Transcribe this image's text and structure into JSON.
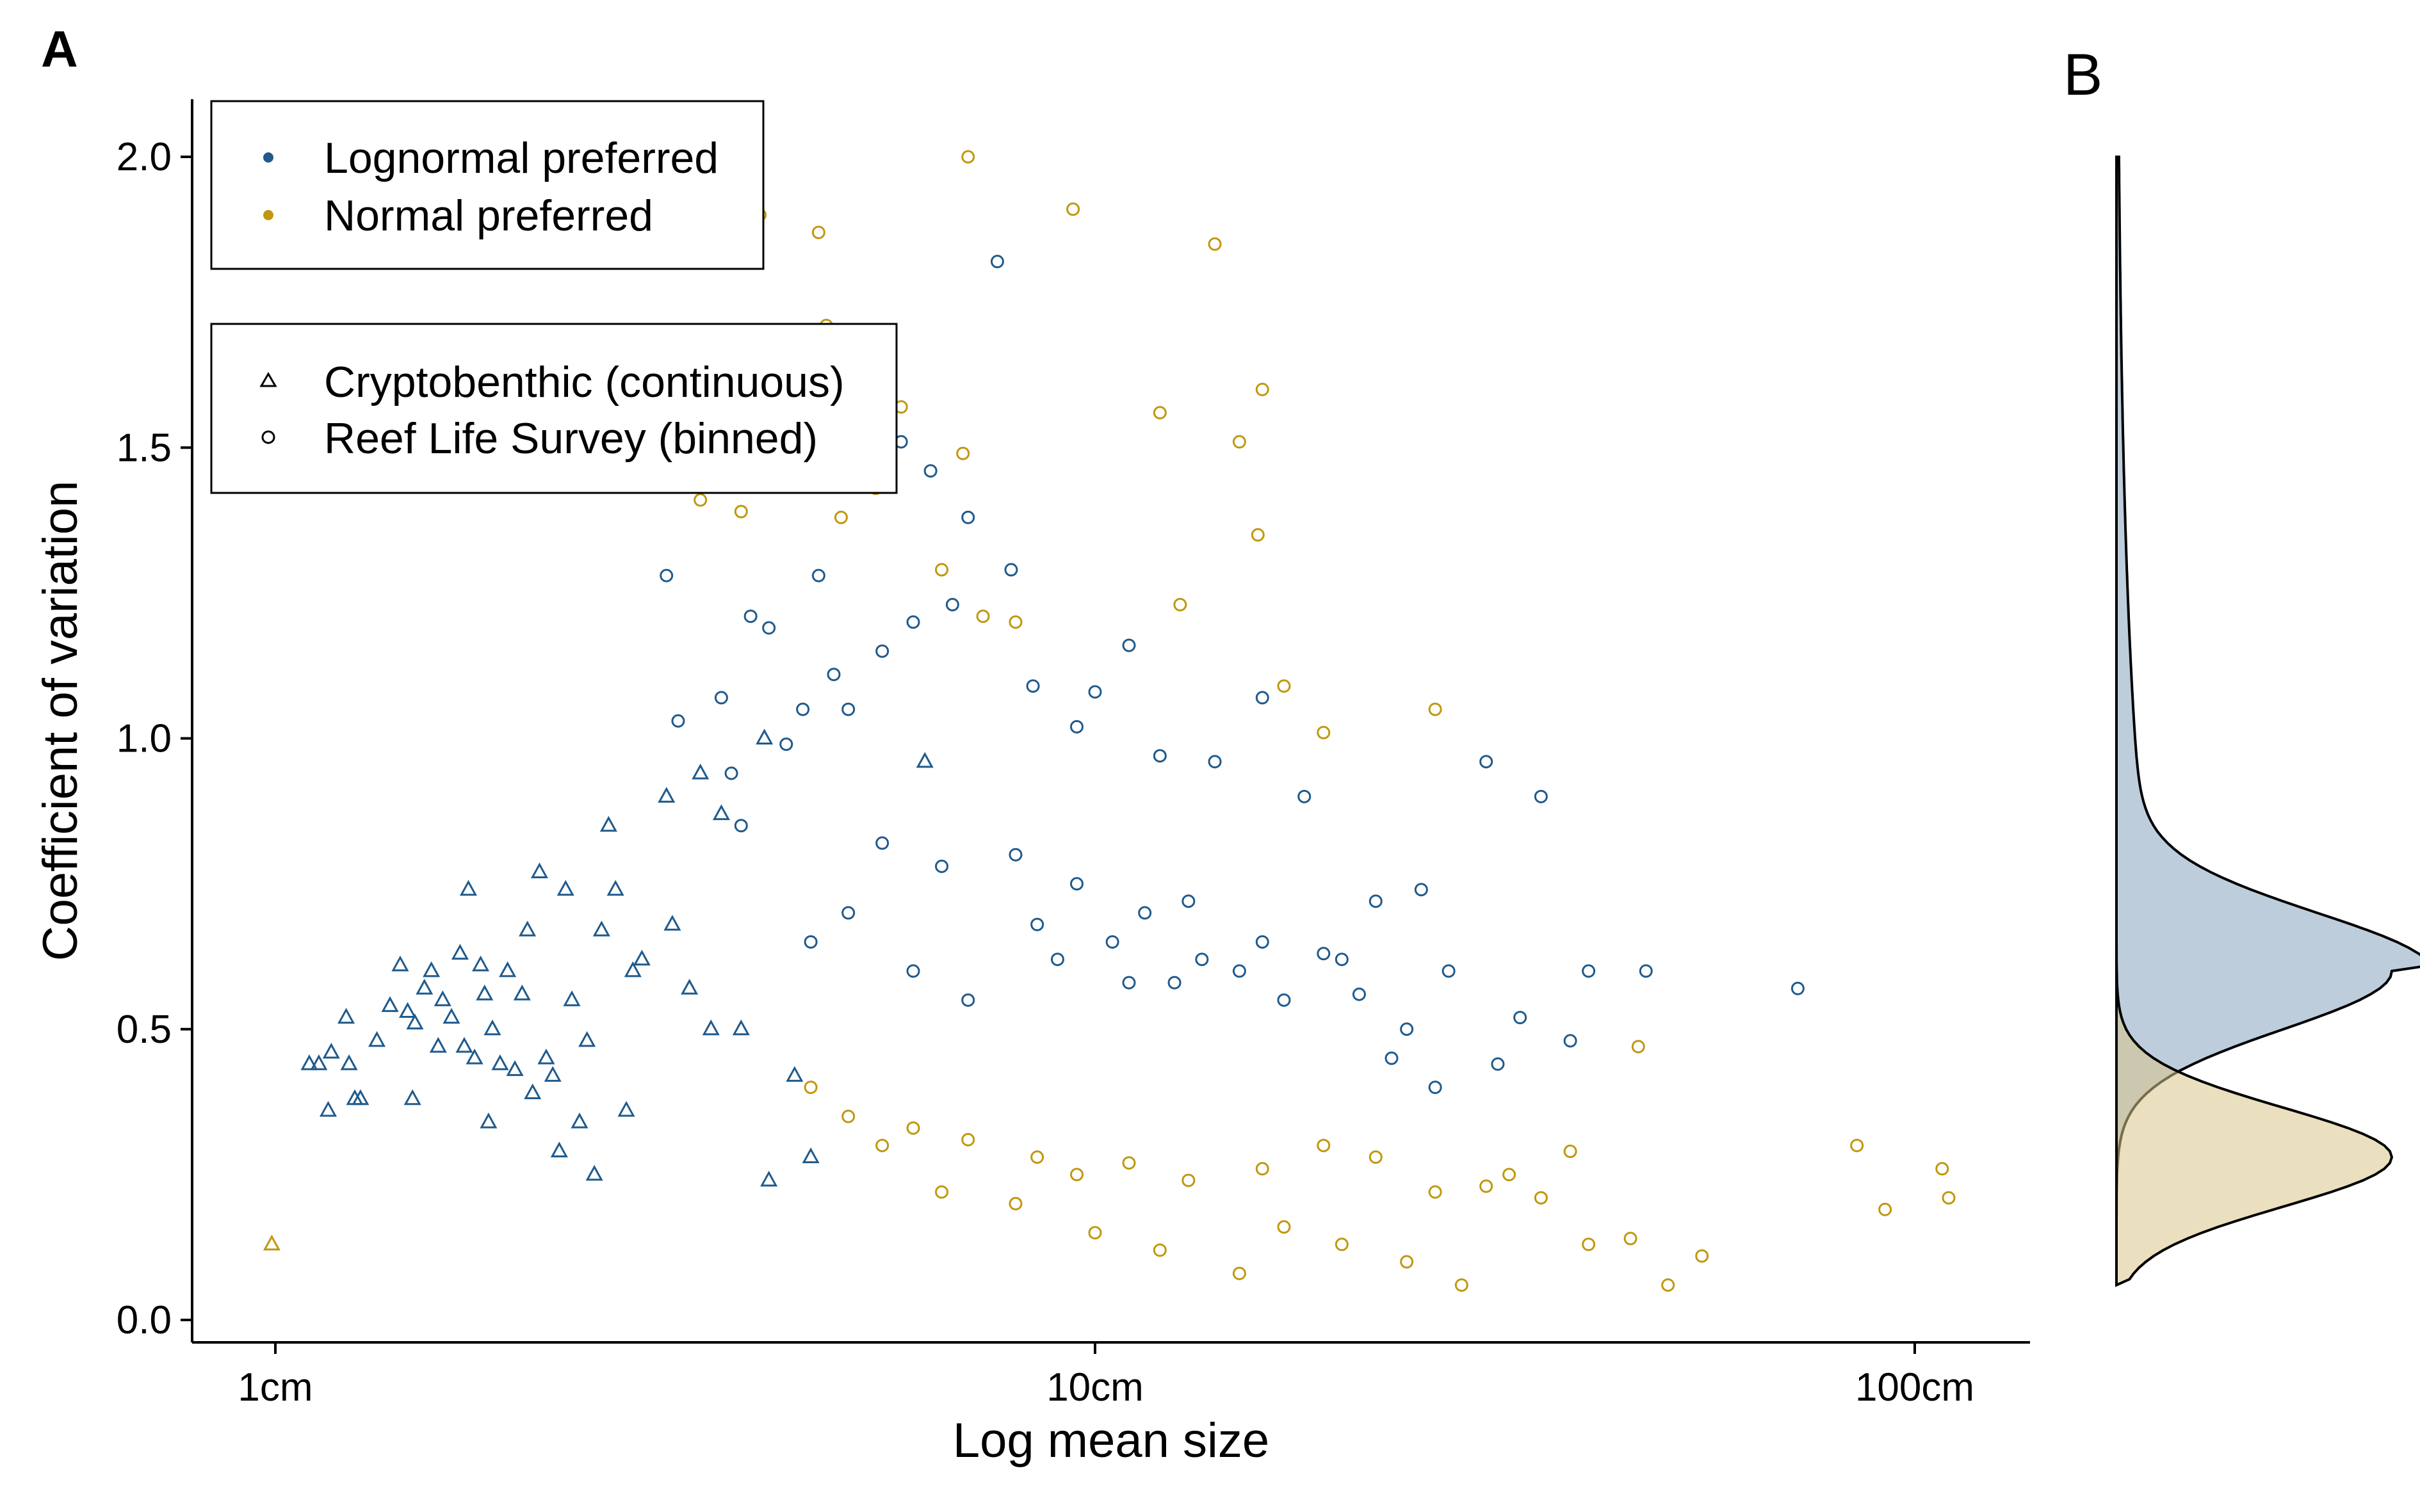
{
  "figure": {
    "panel_a_label": "A",
    "panel_b_label": "B"
  },
  "colors": {
    "lognormal": "#1f5a8c",
    "normal": "#c0980f",
    "lognormal_fill": "#b9cad9",
    "normal_fill": "#e8d9b0"
  },
  "legend_color": {
    "items": [
      {
        "label": "Lognormal preferred",
        "color": "#1f5a8c"
      },
      {
        "label": "Normal preferred",
        "color": "#c0980f"
      }
    ]
  },
  "legend_shape": {
    "items": [
      {
        "label": "Cryptobenthic (continuous)",
        "shape": "triangle"
      },
      {
        "label": "Reef Life Survey (binned)",
        "shape": "circle"
      }
    ]
  },
  "chart_data": [
    {
      "type": "scatter",
      "panel": "A",
      "xlabel": "Log mean size",
      "ylabel": "Coefficient of variation",
      "x_scale": "log10",
      "xlim": [
        0.9,
        130
      ],
      "ylim": [
        -0.03,
        2.09
      ],
      "x_ticks": [
        1,
        10,
        100
      ],
      "x_tick_labels": [
        "1cm",
        "10cm",
        "100cm"
      ],
      "y_ticks": [
        0,
        0.5,
        1,
        1.5,
        2
      ],
      "y_tick_labels": [
        "0.0",
        "0.5",
        "1.0",
        "1.5",
        "2.0"
      ],
      "grid": false,
      "legend_position": "top-left",
      "series": [
        {
          "name": "Lognormal preferred",
          "marker": "triangle",
          "group": "Cryptobenthic (continuous)",
          "points": [
            [
              1.1,
              0.44
            ],
            [
              1.13,
              0.44
            ],
            [
              1.16,
              0.36
            ],
            [
              1.17,
              0.46
            ],
            [
              1.22,
              0.52
            ],
            [
              1.23,
              0.44
            ],
            [
              1.25,
              0.38
            ],
            [
              1.27,
              0.38
            ],
            [
              1.33,
              0.48
            ],
            [
              1.38,
              0.54
            ],
            [
              1.42,
              0.61
            ],
            [
              1.45,
              0.53
            ],
            [
              1.47,
              0.38
            ],
            [
              1.48,
              0.51
            ],
            [
              1.52,
              0.57
            ],
            [
              1.55,
              0.6
            ],
            [
              1.58,
              0.47
            ],
            [
              1.6,
              0.55
            ],
            [
              1.64,
              0.52
            ],
            [
              1.68,
              0.63
            ],
            [
              1.7,
              0.47
            ],
            [
              1.72,
              0.74
            ],
            [
              1.75,
              0.45
            ],
            [
              1.78,
              0.61
            ],
            [
              1.8,
              0.56
            ],
            [
              1.82,
              0.34
            ],
            [
              1.84,
              0.5
            ],
            [
              1.88,
              0.44
            ],
            [
              1.92,
              0.6
            ],
            [
              1.96,
              0.43
            ],
            [
              2.0,
              0.56
            ],
            [
              2.03,
              0.67
            ],
            [
              2.06,
              0.39
            ],
            [
              2.1,
              0.77
            ],
            [
              2.14,
              0.45
            ],
            [
              2.18,
              0.42
            ],
            [
              2.22,
              0.29
            ],
            [
              2.26,
              0.74
            ],
            [
              2.3,
              0.55
            ],
            [
              2.35,
              0.34
            ],
            [
              2.4,
              0.48
            ],
            [
              2.45,
              0.25
            ],
            [
              2.5,
              0.67
            ],
            [
              2.55,
              0.85
            ],
            [
              2.6,
              0.74
            ],
            [
              2.68,
              0.36
            ],
            [
              2.73,
              0.6
            ],
            [
              2.8,
              0.62
            ],
            [
              3.0,
              0.9
            ],
            [
              3.05,
              0.68
            ],
            [
              3.2,
              0.57
            ],
            [
              3.3,
              0.94
            ],
            [
              3.4,
              0.5
            ],
            [
              3.5,
              0.87
            ],
            [
              3.7,
              0.5
            ],
            [
              3.95,
              1.0
            ],
            [
              4.0,
              0.24
            ],
            [
              4.3,
              0.42
            ],
            [
              4.5,
              0.28
            ],
            [
              6.2,
              0.96
            ]
          ]
        },
        {
          "name": "Normal preferred",
          "marker": "triangle",
          "group": "Cryptobenthic (continuous)",
          "points": [
            [
              0.99,
              0.13
            ]
          ]
        },
        {
          "name": "Lognormal preferred",
          "marker": "circle",
          "group": "Reef Life Survey (binned)",
          "points": [
            [
              2.5,
              1.5
            ],
            [
              2.9,
              1.45
            ],
            [
              3.0,
              1.28
            ],
            [
              3.1,
              1.03
            ],
            [
              3.5,
              1.07
            ],
            [
              3.6,
              0.94
            ],
            [
              3.7,
              0.85
            ],
            [
              3.8,
              1.21
            ],
            [
              4.0,
              1.19
            ],
            [
              4.2,
              0.99
            ],
            [
              4.4,
              1.05
            ],
            [
              4.6,
              1.28
            ],
            [
              4.8,
              1.11
            ],
            [
              5.0,
              1.05
            ],
            [
              5.3,
              1.57
            ],
            [
              5.5,
              1.15
            ],
            [
              5.8,
              1.51
            ],
            [
              6.0,
              1.2
            ],
            [
              6.3,
              1.46
            ],
            [
              6.7,
              1.23
            ],
            [
              7.0,
              1.38
            ],
            [
              7.6,
              1.82
            ],
            [
              7.9,
              1.29
            ],
            [
              8.4,
              1.09
            ],
            [
              9.5,
              1.02
            ],
            [
              10.0,
              1.08
            ],
            [
              11.0,
              1.16
            ],
            [
              12.0,
              0.97
            ],
            [
              14.0,
              0.96
            ],
            [
              16.0,
              1.07
            ],
            [
              18.0,
              0.9
            ],
            [
              22.0,
              0.72
            ],
            [
              25.0,
              0.74
            ],
            [
              30.0,
              0.96
            ],
            [
              35.0,
              0.9
            ],
            [
              40.0,
              0.6
            ],
            [
              47.0,
              0.6
            ],
            [
              72.0,
              0.57
            ],
            [
              5.5,
              0.82
            ],
            [
              6.5,
              0.78
            ],
            [
              8.0,
              0.8
            ],
            [
              9.0,
              0.62
            ],
            [
              10.5,
              0.65
            ],
            [
              11.5,
              0.7
            ],
            [
              12.5,
              0.58
            ],
            [
              13.5,
              0.62
            ],
            [
              15.0,
              0.6
            ],
            [
              17.0,
              0.55
            ],
            [
              19.0,
              0.63
            ],
            [
              21.0,
              0.56
            ],
            [
              24.0,
              0.5
            ],
            [
              27.0,
              0.6
            ],
            [
              33.0,
              0.52
            ],
            [
              38.0,
              0.48
            ],
            [
              4.5,
              0.65
            ],
            [
              5.0,
              0.7
            ],
            [
              6.0,
              0.6
            ],
            [
              7.0,
              0.55
            ],
            [
              8.5,
              0.68
            ],
            [
              9.5,
              0.75
            ],
            [
              11.0,
              0.58
            ],
            [
              13.0,
              0.72
            ],
            [
              16.0,
              0.65
            ],
            [
              20.0,
              0.62
            ],
            [
              23.0,
              0.45
            ],
            [
              26.0,
              0.4
            ],
            [
              31.0,
              0.44
            ]
          ]
        },
        {
          "name": "Normal preferred",
          "marker": "circle",
          "group": "Reef Life Survey (binned)",
          "points": [
            [
              3.3,
              1.41
            ],
            [
              3.7,
              1.39
            ],
            [
              3.9,
              1.9
            ],
            [
              4.2,
              1.66
            ],
            [
              4.5,
              1.54
            ],
            [
              4.6,
              1.87
            ],
            [
              4.7,
              1.71
            ],
            [
              4.9,
              1.38
            ],
            [
              5.1,
              1.55
            ],
            [
              5.4,
              1.43
            ],
            [
              5.8,
              1.57
            ],
            [
              6.5,
              1.29
            ],
            [
              6.9,
              1.49
            ],
            [
              7.0,
              2.0
            ],
            [
              7.3,
              1.21
            ],
            [
              8.0,
              1.2
            ],
            [
              9.4,
              1.91
            ],
            [
              12.0,
              1.56
            ],
            [
              12.7,
              1.23
            ],
            [
              14.0,
              1.85
            ],
            [
              15.0,
              1.51
            ],
            [
              15.8,
              1.35
            ],
            [
              16.0,
              1.6
            ],
            [
              17.0,
              1.09
            ],
            [
              19.0,
              1.01
            ],
            [
              26.0,
              1.05
            ],
            [
              46.0,
              0.47
            ],
            [
              55.0,
              0.11
            ],
            [
              85.0,
              0.3
            ],
            [
              92.0,
              0.19
            ],
            [
              108.0,
              0.26
            ],
            [
              110.0,
              0.21
            ],
            [
              50.0,
              0.06
            ],
            [
              45.0,
              0.14
            ],
            [
              40.0,
              0.13
            ],
            [
              35.0,
              0.21
            ],
            [
              30.0,
              0.23
            ],
            [
              28.0,
              0.06
            ],
            [
              24.0,
              0.1
            ],
            [
              20.0,
              0.13
            ],
            [
              17.0,
              0.16
            ],
            [
              15.0,
              0.08
            ],
            [
              12.0,
              0.12
            ],
            [
              10.0,
              0.15
            ],
            [
              8.0,
              0.2
            ],
            [
              6.5,
              0.22
            ],
            [
              5.5,
              0.3
            ],
            [
              5.0,
              0.35
            ],
            [
              4.5,
              0.4
            ],
            [
              6.0,
              0.33
            ],
            [
              7.0,
              0.31
            ],
            [
              8.5,
              0.28
            ],
            [
              9.5,
              0.25
            ],
            [
              11.0,
              0.27
            ],
            [
              13.0,
              0.24
            ],
            [
              16.0,
              0.26
            ],
            [
              19.0,
              0.3
            ],
            [
              22.0,
              0.28
            ],
            [
              26.0,
              0.22
            ],
            [
              32.0,
              0.25
            ],
            [
              38.0,
              0.29
            ]
          ]
        }
      ],
      "density": {
        "lognormal": {
          "x": [
            -0.03,
            0.49,
            0.5,
            1.0,
            1.5,
            2.0
          ]
        },
        "normal": {
          "x": [
            0.06,
            0.3,
            2.0
          ]
        }
      }
    },
    {
      "type": "area",
      "panel": "B",
      "orientation": "vertical",
      "series": [
        {
          "name": "Lognormal preferred",
          "mode": 0.6
        },
        {
          "name": "Normal preferred",
          "mode": 0.28
        }
      ]
    }
  ]
}
